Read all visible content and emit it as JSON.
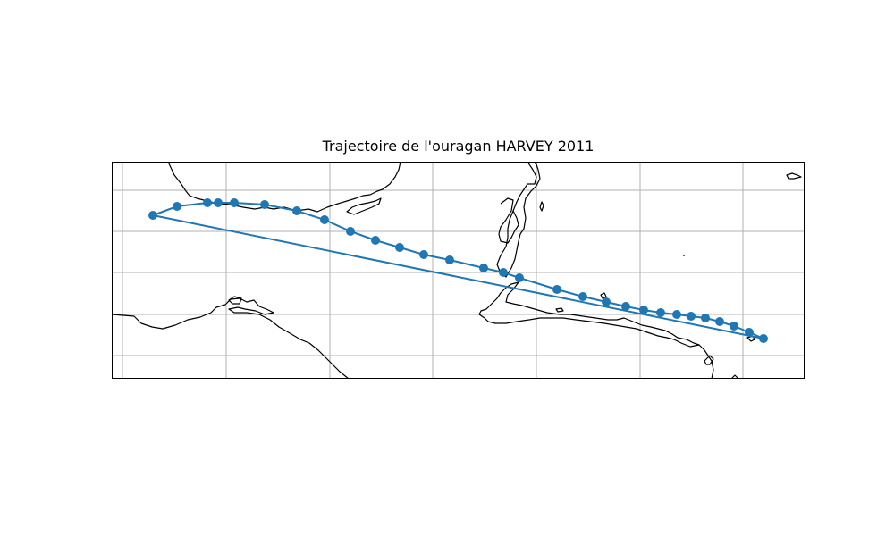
{
  "title": "Trajectoire de l'ouragan HARVEY 2011",
  "colors": {
    "track": "#1f77b4",
    "coastline": "#000000",
    "grid": "#b0b0b0",
    "frame": "#000000"
  }
}
